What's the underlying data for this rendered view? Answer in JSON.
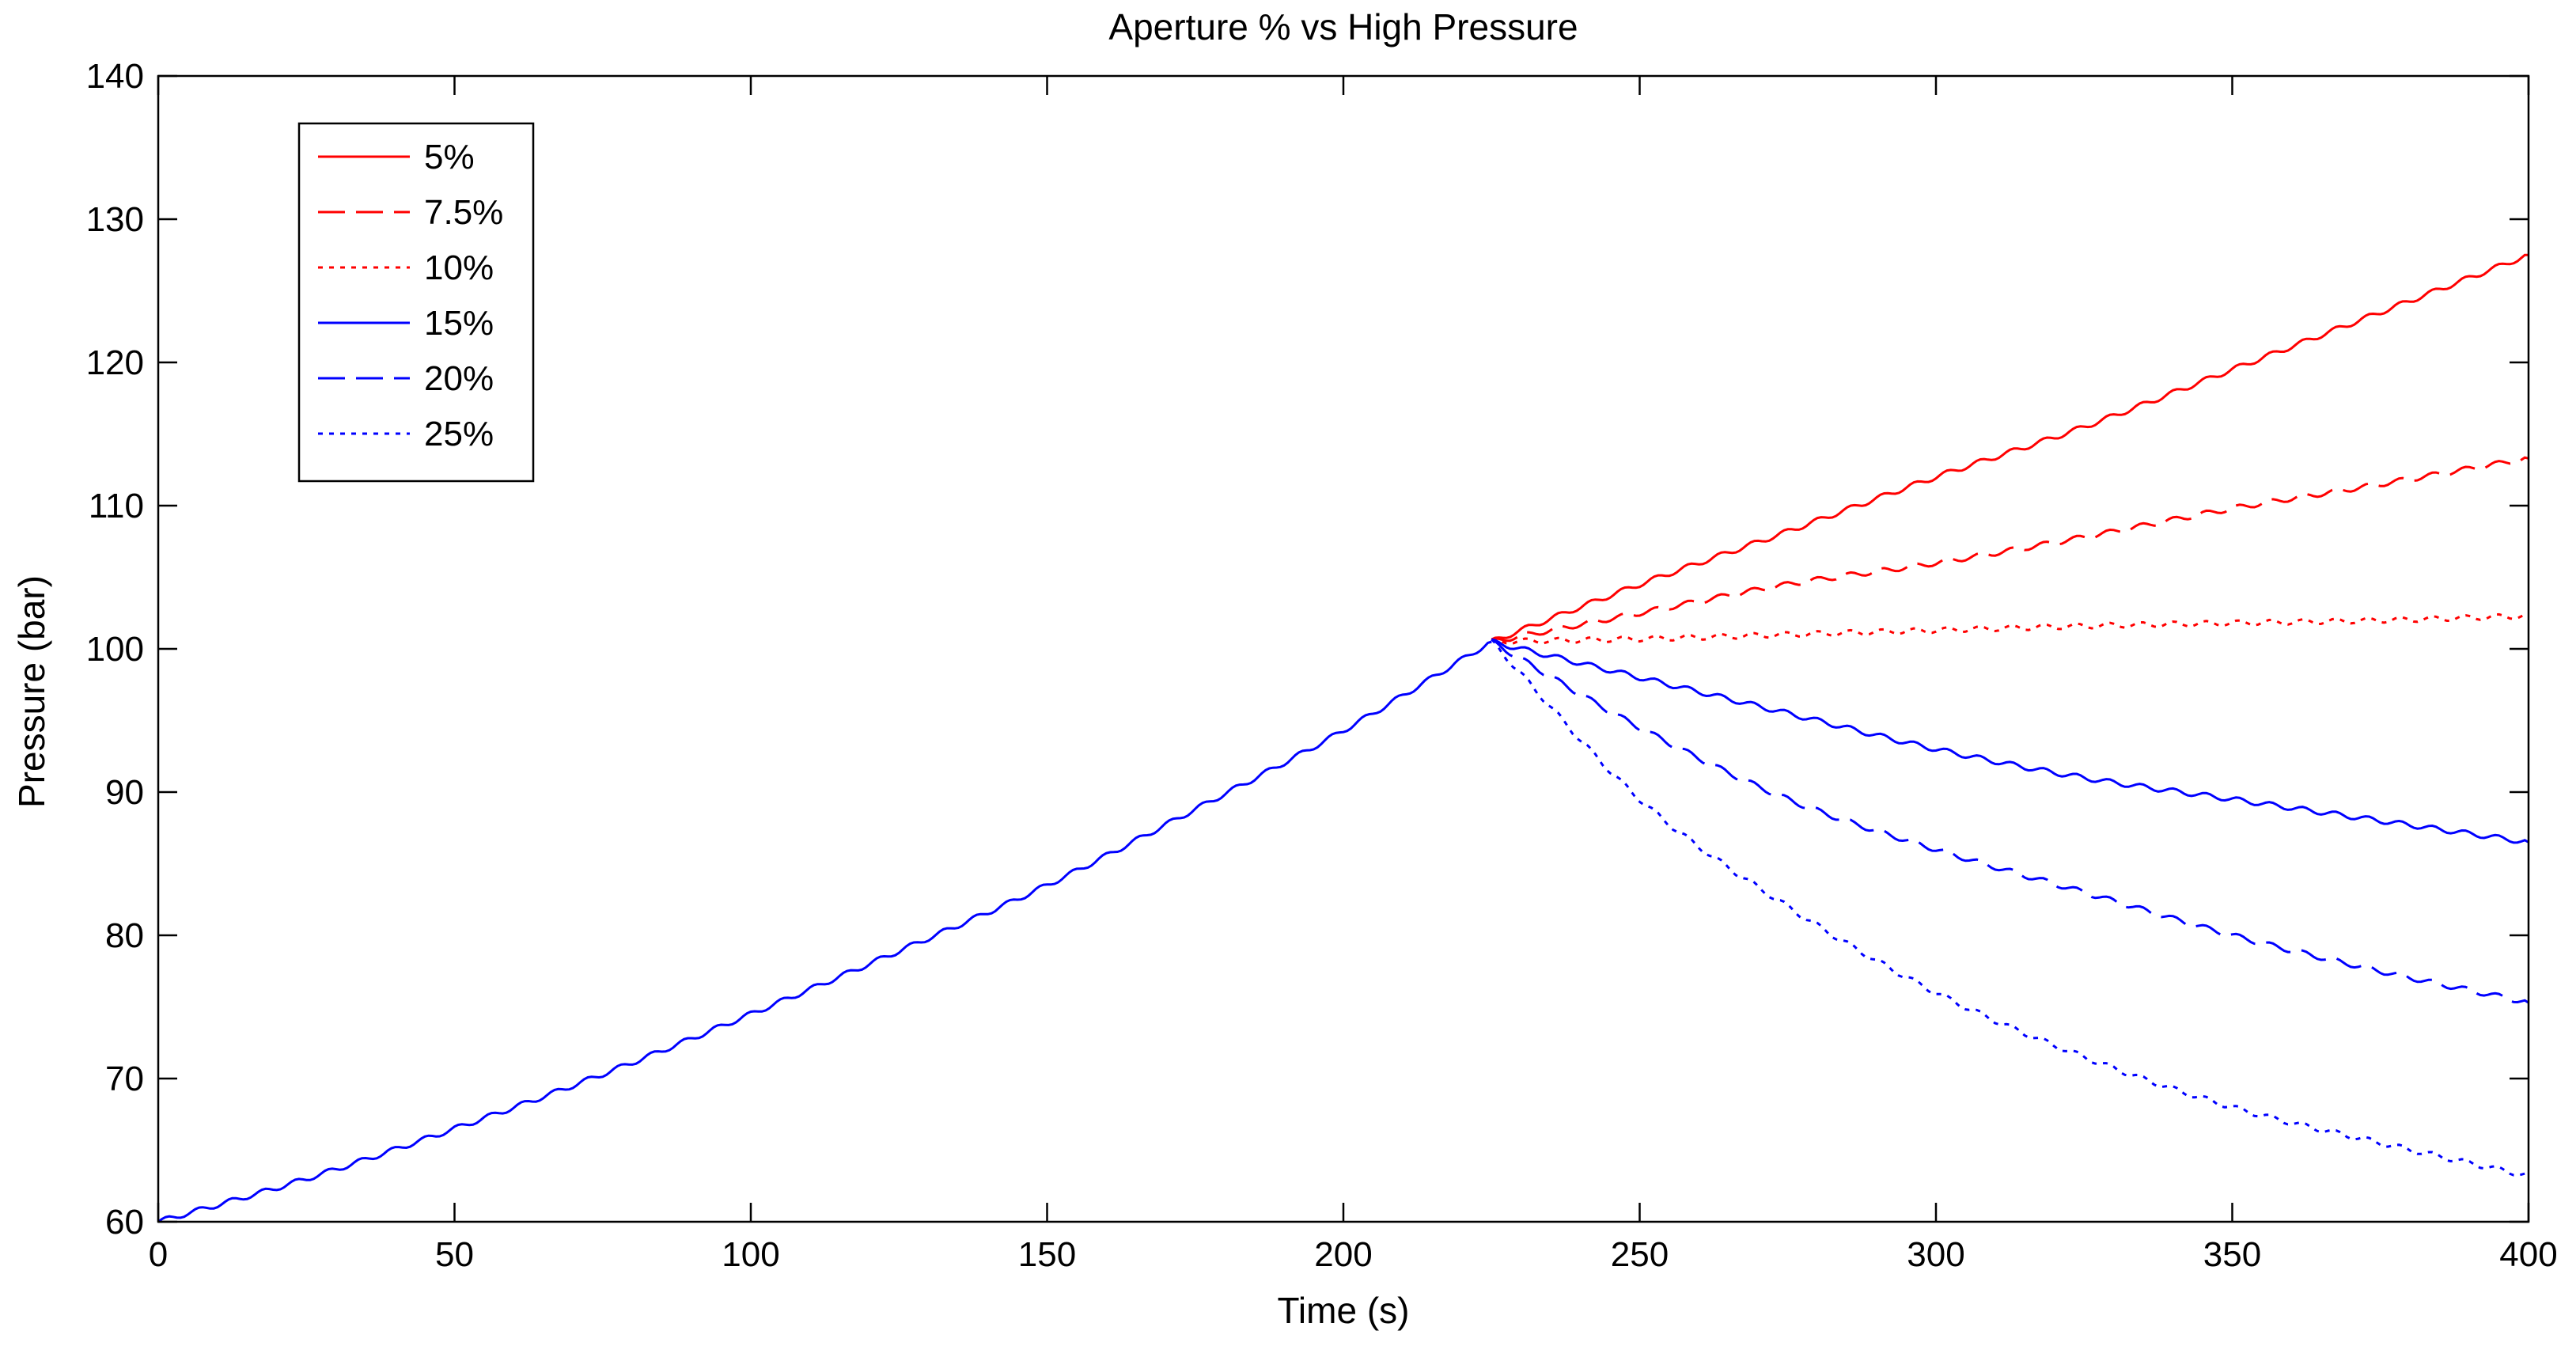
{
  "chart_data": {
    "type": "line",
    "title": "Aperture % vs High Pressure",
    "xlabel": "Time (s)",
    "ylabel": "Pressure (bar)",
    "xlim": [
      0,
      400
    ],
    "ylim": [
      60,
      140
    ],
    "xticks": [
      0,
      50,
      100,
      150,
      200,
      250,
      300,
      350,
      400
    ],
    "yticks": [
      60,
      70,
      80,
      90,
      100,
      110,
      120,
      130,
      140
    ],
    "grid": false,
    "legend_position": "top-left",
    "shared_segment": {
      "note_color": "#0000ff",
      "x": [
        0,
        25,
        50,
        75,
        100,
        125,
        150,
        175,
        200,
        225
      ],
      "y": [
        60.0,
        63.0,
        66.5,
        70.3,
        74.5,
        78.9,
        83.5,
        88.8,
        94.3,
        100.5
      ]
    },
    "series": [
      {
        "name": "5%",
        "color": "#ff0000",
        "dash": "solid",
        "x": [
          225,
          250,
          275,
          300,
          325,
          350,
          375,
          400
        ],
        "y": [
          100.5,
          104.5,
          108.2,
          112.0,
          115.5,
          119.5,
          123.5,
          127.5
        ]
      },
      {
        "name": "7.5%",
        "color": "#ff0000",
        "dash": "dashed",
        "x": [
          225,
          250,
          275,
          300,
          325,
          350,
          375,
          400
        ],
        "y": [
          100.5,
          102.5,
          104.5,
          106.0,
          107.8,
          109.8,
          111.5,
          113.3
        ]
      },
      {
        "name": "10%",
        "color": "#ff0000",
        "dash": "dotted",
        "x": [
          225,
          250,
          275,
          300,
          325,
          350,
          375,
          400
        ],
        "y": [
          100.5,
          100.7,
          101.0,
          101.3,
          101.6,
          101.8,
          102.0,
          102.3
        ]
      },
      {
        "name": "15%",
        "color": "#0000ff",
        "dash": "solid",
        "x": [
          225,
          250,
          275,
          300,
          325,
          350,
          375,
          400
        ],
        "y": [
          100.5,
          98.0,
          95.5,
          93.0,
          91.0,
          89.5,
          88.0,
          86.5
        ]
      },
      {
        "name": "20%",
        "color": "#0000ff",
        "dash": "dashed",
        "x": [
          225,
          250,
          275,
          300,
          325,
          350,
          375,
          400
        ],
        "y": [
          100.5,
          94.5,
          89.5,
          86.0,
          83.0,
          80.0,
          77.5,
          75.3
        ]
      },
      {
        "name": "25%",
        "color": "#0000ff",
        "dash": "dotted",
        "x": [
          225,
          250,
          275,
          300,
          325,
          350,
          375,
          400
        ],
        "y": [
          100.5,
          89.5,
          82.0,
          76.0,
          71.5,
          68.0,
          65.5,
          63.2
        ]
      }
    ]
  }
}
